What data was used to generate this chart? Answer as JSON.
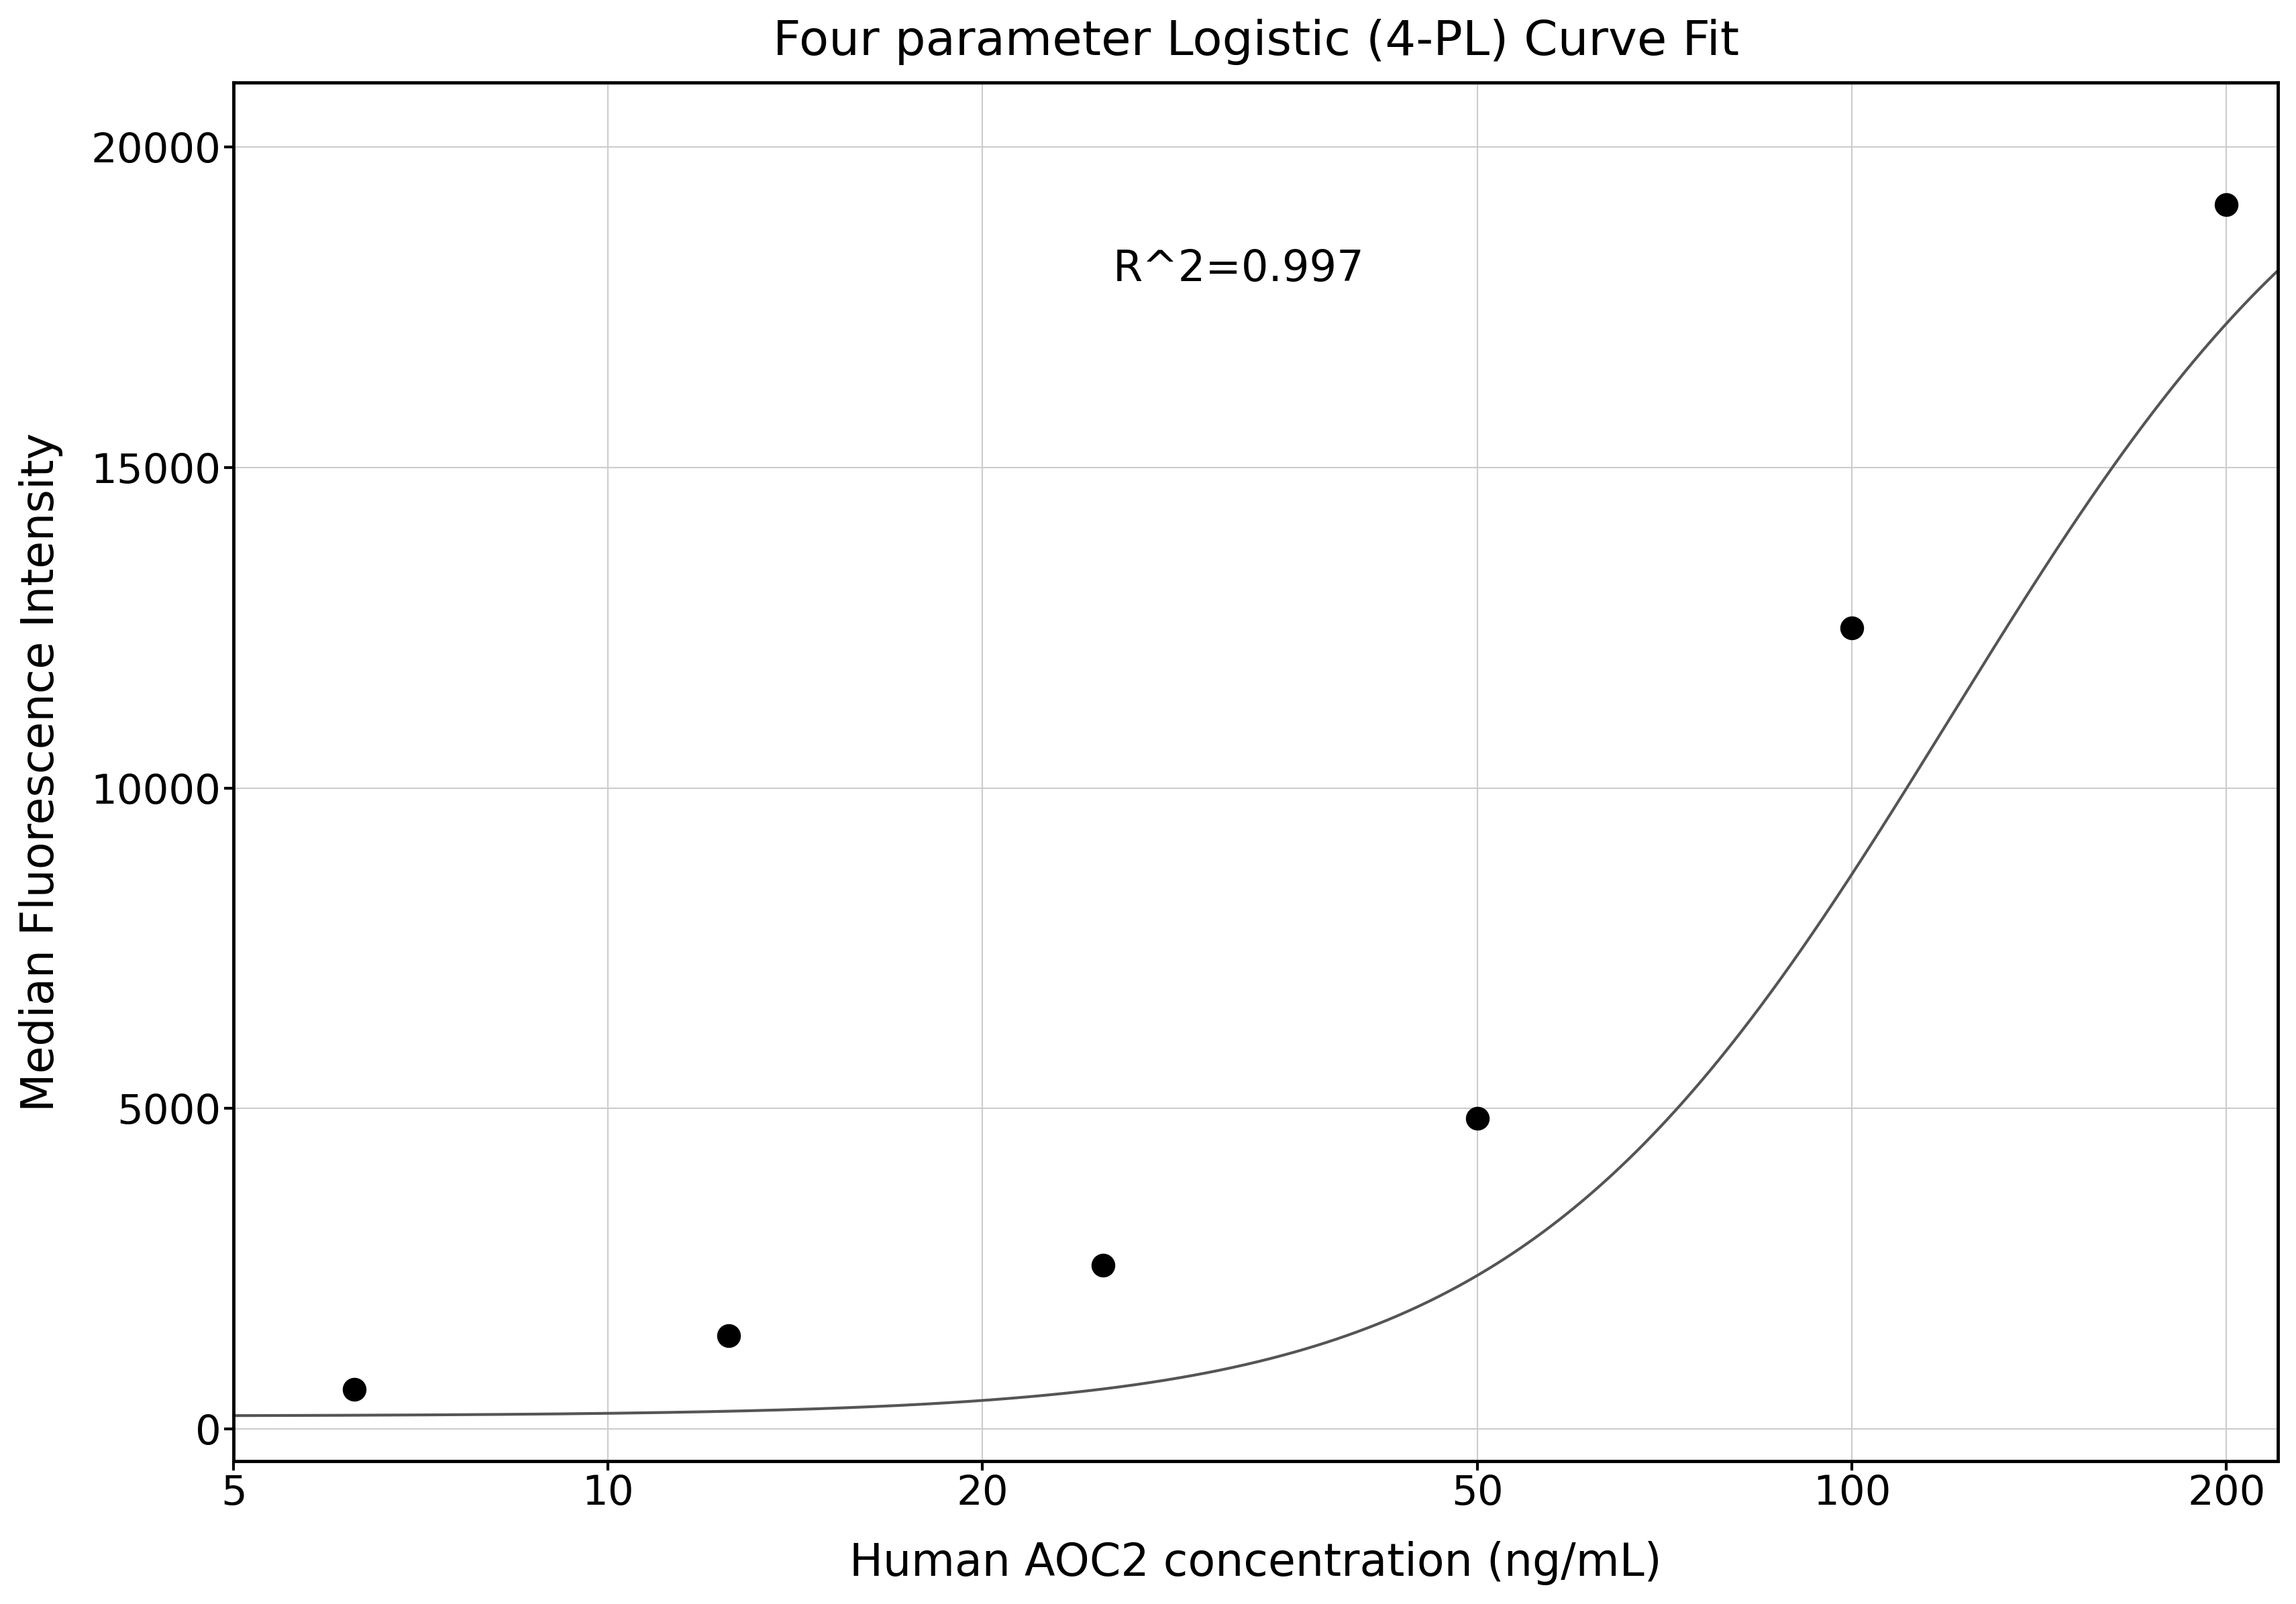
{
  "title": "Four parameter Logistic (4-PL) Curve Fit",
  "xlabel": "Human AOC2 concentration (ng/mL)",
  "ylabel": "Median Fluorescence Intensity",
  "scatter_x": [
    6.25,
    12.5,
    25.0,
    50.0,
    100.0,
    200.0
  ],
  "scatter_y": [
    620,
    1450,
    2550,
    4850,
    12500,
    19100
  ],
  "r_squared": "R^2=0.997",
  "xscale": "log",
  "xlim": [
    5,
    220
  ],
  "ylim": [
    -500,
    21000
  ],
  "yticks": [
    0,
    5000,
    10000,
    15000,
    20000
  ],
  "xticks": [
    5,
    10,
    20,
    50,
    100,
    200
  ],
  "xtick_labels": [
    "5",
    "10",
    "20",
    "50",
    "100",
    "200"
  ],
  "grid_color": "#cccccc",
  "curve_color": "#555555",
  "scatter_color": "#000000",
  "background_color": "#ffffff",
  "title_fontsize": 52,
  "label_fontsize": 48,
  "tick_fontsize": 44,
  "annotation_fontsize": 46,
  "4pl_A": 200.0,
  "4pl_B": 2.5,
  "4pl_C": 120.0,
  "4pl_D": 22000.0
}
